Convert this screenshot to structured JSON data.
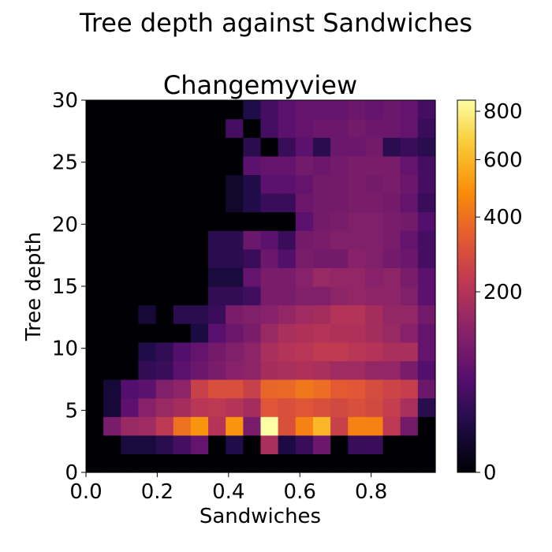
{
  "figure": {
    "suptitle": "Tree depth against Sandwiches"
  },
  "chart_data": {
    "type": "heatmap",
    "title": "Changemyview",
    "xlabel": "Sandwiches",
    "ylabel": "Tree depth",
    "xlim": [
      0,
      0.98
    ],
    "ylim": [
      0,
      30
    ],
    "x_ticks": [
      0.0,
      0.2,
      0.4,
      0.6,
      0.8
    ],
    "x_tick_labels": [
      "0.0",
      "0.2",
      "0.4",
      "0.6",
      "0.8"
    ],
    "y_ticks": [
      0,
      5,
      10,
      15,
      20,
      25,
      30
    ],
    "y_tick_labels": [
      "0",
      "5",
      "10",
      "15",
      "20",
      "25",
      "30"
    ],
    "x_bin_width": 0.049,
    "y_bin_width": 1.5,
    "colormap": "inferno",
    "color_scale": "power-norm (gamma ~0.5)",
    "colorbar": {
      "vmin": 0,
      "vmax": 850,
      "ticks": [
        0,
        200,
        400,
        600,
        800
      ],
      "tick_labels": [
        "0",
        "200",
        "400",
        "600",
        "800"
      ]
    },
    "grid": false,
    "counts_rows_bottom_to_top": [
      [
        0,
        0,
        0,
        0,
        0,
        0,
        0,
        0,
        0,
        0,
        0,
        0,
        0,
        0,
        0,
        0,
        0,
        0,
        0,
        0
      ],
      [
        0,
        0,
        10,
        10,
        20,
        40,
        70,
        0,
        15,
        0,
        180,
        12,
        30,
        80,
        0,
        30,
        30,
        0,
        0,
        0
      ],
      [
        0,
        100,
        150,
        160,
        220,
        400,
        500,
        200,
        500,
        100,
        850,
        300,
        450,
        600,
        250,
        450,
        450,
        220,
        90,
        0
      ],
      [
        0,
        8,
        60,
        120,
        150,
        170,
        210,
        220,
        200,
        170,
        320,
        300,
        320,
        300,
        280,
        300,
        280,
        240,
        180,
        20
      ],
      [
        0,
        8,
        50,
        60,
        110,
        130,
        250,
        300,
        300,
        250,
        370,
        380,
        420,
        390,
        340,
        330,
        290,
        260,
        240,
        80
      ],
      [
        0,
        0,
        0,
        25,
        30,
        60,
        80,
        100,
        120,
        130,
        170,
        180,
        190,
        180,
        160,
        160,
        140,
        140,
        100,
        50
      ],
      [
        0,
        0,
        0,
        15,
        25,
        50,
        70,
        90,
        110,
        130,
        180,
        200,
        210,
        230,
        230,
        210,
        200,
        180,
        180,
        70
      ],
      [
        0,
        0,
        0,
        0,
        0,
        0,
        12,
        55,
        80,
        100,
        150,
        180,
        190,
        200,
        190,
        190,
        170,
        150,
        120,
        70
      ],
      [
        0,
        0,
        0,
        8,
        0,
        20,
        20,
        30,
        100,
        110,
        120,
        140,
        160,
        170,
        200,
        200,
        170,
        140,
        140,
        90
      ],
      [
        0,
        0,
        0,
        0,
        0,
        0,
        0,
        25,
        25,
        35,
        100,
        100,
        110,
        110,
        130,
        140,
        130,
        130,
        110,
        60
      ],
      [
        0,
        0,
        0,
        0,
        0,
        0,
        0,
        10,
        10,
        70,
        100,
        100,
        120,
        150,
        140,
        140,
        120,
        130,
        100,
        60
      ],
      [
        0,
        0,
        0,
        0,
        0,
        0,
        0,
        20,
        20,
        30,
        80,
        50,
        100,
        90,
        90,
        120,
        110,
        90,
        80,
        40
      ],
      [
        0,
        0,
        0,
        0,
        0,
        0,
        0,
        20,
        20,
        80,
        60,
        30,
        90,
        100,
        110,
        110,
        110,
        100,
        70,
        40
      ],
      [
        0,
        0,
        0,
        0,
        0,
        0,
        0,
        0,
        0,
        0,
        0,
        0,
        60,
        90,
        100,
        110,
        110,
        100,
        90,
        50
      ],
      [
        0,
        0,
        0,
        0,
        0,
        0,
        0,
        0,
        5,
        15,
        30,
        30,
        80,
        90,
        90,
        100,
        100,
        90,
        70,
        30
      ],
      [
        0,
        0,
        0,
        0,
        0,
        0,
        0,
        0,
        5,
        15,
        60,
        60,
        70,
        90,
        90,
        100,
        90,
        100,
        80,
        40
      ],
      [
        0,
        0,
        0,
        0,
        0,
        0,
        0,
        0,
        0,
        60,
        70,
        70,
        90,
        80,
        90,
        100,
        100,
        100,
        70,
        40
      ],
      [
        0,
        0,
        0,
        0,
        0,
        0,
        0,
        0,
        0,
        20,
        0,
        30,
        60,
        20,
        80,
        80,
        90,
        20,
        30,
        20
      ],
      [
        0,
        0,
        0,
        0,
        0,
        0,
        0,
        0,
        40,
        0,
        40,
        60,
        70,
        80,
        80,
        90,
        80,
        80,
        70,
        30
      ],
      [
        0,
        0,
        0,
        0,
        0,
        0,
        0,
        0,
        0,
        15,
        40,
        60,
        70,
        70,
        70,
        80,
        70,
        80,
        70,
        40
      ]
    ]
  }
}
